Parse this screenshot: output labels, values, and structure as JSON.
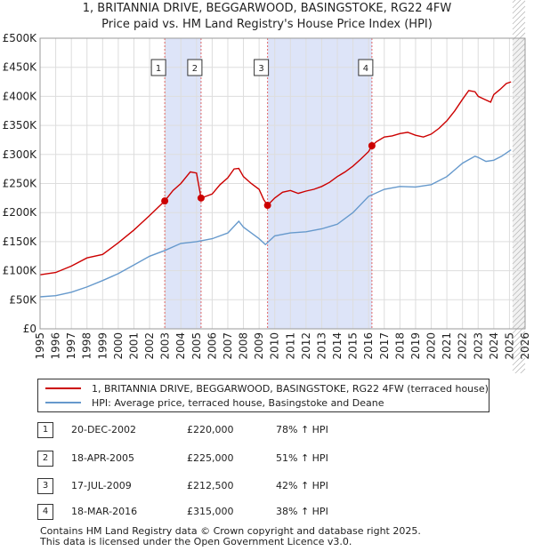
{
  "title_line1": "1, BRITANNIA DRIVE, BEGGARWOOD, BASINGSTOKE, RG22 4FW",
  "title_line2": "Price paid vs. HM Land Registry's House Price Index (HPI)",
  "colors": {
    "property": "#cc0000",
    "hpi": "#6699cc",
    "shade": "#dde4f8",
    "marker_line": "#e06666"
  },
  "legend": {
    "property": "1, BRITANNIA DRIVE, BEGGARWOOD, BASINGSTOKE, RG22 4FW (terraced house)",
    "hpi": "HPI: Average price, terraced house, Basingstoke and Deane"
  },
  "transactions": [
    {
      "num": "1",
      "date": "20-DEC-2002",
      "price": "£220,000",
      "hpi": "78% ↑ HPI"
    },
    {
      "num": "2",
      "date": "18-APR-2005",
      "price": "£225,000",
      "hpi": "51% ↑ HPI"
    },
    {
      "num": "3",
      "date": "17-JUL-2009",
      "price": "£212,500",
      "hpi": "42% ↑ HPI"
    },
    {
      "num": "4",
      "date": "18-MAR-2016",
      "price": "£315,000",
      "hpi": "38% ↑ HPI"
    }
  ],
  "footer_line1": "Contains HM Land Registry data © Crown copyright and database right 2025.",
  "footer_line2": "This data is licensed under the Open Government Licence v3.0.",
  "chart_data": {
    "type": "line",
    "xlim": [
      1995,
      2026
    ],
    "ylim": [
      0,
      500000
    ],
    "y_ticks": [
      0,
      50000,
      100000,
      150000,
      200000,
      250000,
      300000,
      350000,
      400000,
      450000,
      500000
    ],
    "y_tick_labels": [
      "£0",
      "£50K",
      "£100K",
      "£150K",
      "£200K",
      "£250K",
      "£300K",
      "£350K",
      "£400K",
      "£450K",
      "£500K"
    ],
    "x_ticks": [
      1995,
      1996,
      1997,
      1998,
      1999,
      2000,
      2001,
      2002,
      2003,
      2004,
      2005,
      2006,
      2007,
      2008,
      2009,
      2010,
      2011,
      2012,
      2013,
      2014,
      2015,
      2016,
      2017,
      2018,
      2019,
      2020,
      2021,
      2022,
      2023,
      2024,
      2025,
      2026
    ],
    "shaded_ranges": [
      [
        2002.97,
        2005.29
      ],
      [
        2009.54,
        2016.21
      ]
    ],
    "future_hatch_start": 2025.2,
    "sales": [
      {
        "label": "1",
        "x": 2002.97,
        "y": 220000
      },
      {
        "label": "2",
        "x": 2005.29,
        "y": 225000
      },
      {
        "label": "3",
        "x": 2009.54,
        "y": 212500
      },
      {
        "label": "4",
        "x": 2016.21,
        "y": 315000
      }
    ],
    "series": [
      {
        "name": "property",
        "x": [
          1995,
          1996,
          1997,
          1998,
          1999,
          2000,
          2001,
          2002,
          2002.97,
          2003.5,
          2004,
          2004.6,
          2005,
          2005.29,
          2005.6,
          2006,
          2006.5,
          2007,
          2007.4,
          2007.7,
          2008,
          2008.5,
          2009,
          2009.3,
          2009.54,
          2010,
          2010.5,
          2011,
          2011.5,
          2012,
          2012.5,
          2013,
          2013.5,
          2014,
          2014.5,
          2015,
          2015.5,
          2016,
          2016.21,
          2016.5,
          2017,
          2017.5,
          2018,
          2018.5,
          2019,
          2019.5,
          2020,
          2020.5,
          2021,
          2021.5,
          2022,
          2022.4,
          2022.8,
          2023,
          2023.4,
          2023.8,
          2024,
          2024.4,
          2024.8,
          2025.1
        ],
        "y": [
          93000,
          97000,
          108000,
          122000,
          128000,
          148000,
          170000,
          195000,
          220000,
          238000,
          250000,
          270000,
          268000,
          225000,
          228000,
          232000,
          248000,
          260000,
          275000,
          276000,
          262000,
          250000,
          240000,
          222000,
          212500,
          225000,
          235000,
          238000,
          233000,
          237000,
          240000,
          245000,
          252000,
          262000,
          270000,
          280000,
          292000,
          305000,
          315000,
          322000,
          330000,
          332000,
          336000,
          338000,
          333000,
          330000,
          335000,
          345000,
          358000,
          375000,
          395000,
          410000,
          408000,
          400000,
          395000,
          390000,
          403000,
          412000,
          422000,
          425000
        ]
      },
      {
        "name": "hpi",
        "x": [
          1995,
          1996,
          1997,
          1998,
          1999,
          2000,
          2001,
          2002,
          2003,
          2004,
          2005,
          2006,
          2007,
          2007.7,
          2008,
          2008.5,
          2009,
          2009.4,
          2010,
          2011,
          2012,
          2013,
          2014,
          2015,
          2016,
          2017,
          2018,
          2019,
          2020,
          2021,
          2022,
          2022.8,
          2023,
          2023.5,
          2024,
          2024.5,
          2025.1
        ],
        "y": [
          55000,
          57000,
          63000,
          72000,
          83000,
          95000,
          110000,
          125000,
          135000,
          147000,
          150000,
          155000,
          165000,
          185000,
          175000,
          165000,
          155000,
          145000,
          160000,
          165000,
          167000,
          172000,
          180000,
          200000,
          228000,
          240000,
          245000,
          244000,
          248000,
          262000,
          285000,
          297000,
          295000,
          288000,
          290000,
          297000,
          308000
        ]
      }
    ]
  }
}
